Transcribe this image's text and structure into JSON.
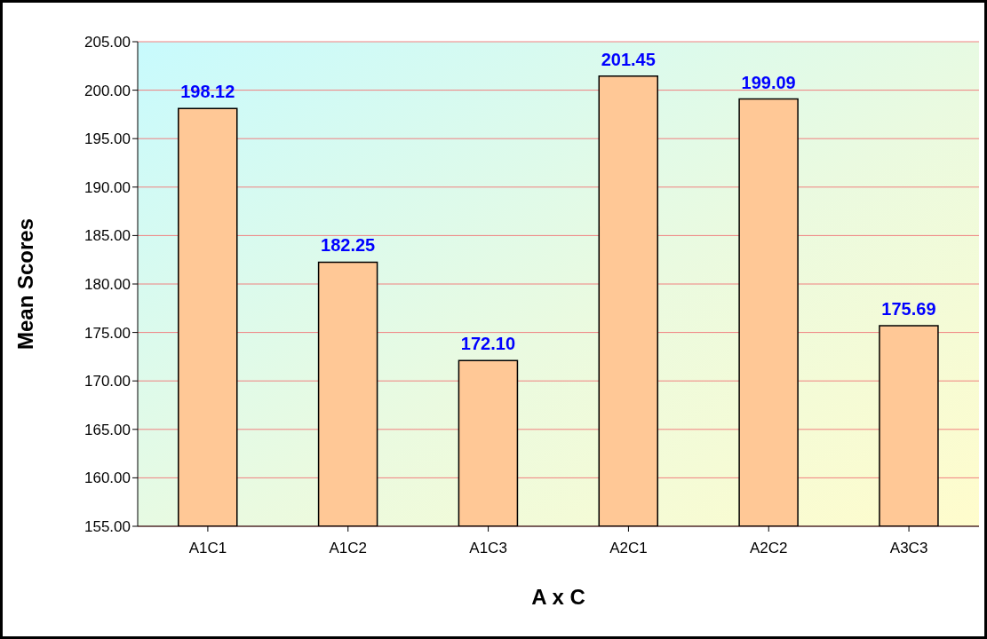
{
  "chart_data": {
    "type": "bar",
    "xlabel": "A x C",
    "ylabel": "Mean Scores",
    "categories": [
      "A1C1",
      "A1C2",
      "A1C3",
      "A2C1",
      "A2C2",
      "A3C3"
    ],
    "values": [
      198.12,
      182.25,
      172.1,
      201.45,
      199.09,
      175.69
    ],
    "value_labels": [
      "198.12",
      "182.25",
      "172.10",
      "201.45",
      "199.09",
      "175.69"
    ],
    "color": "#ffc896",
    "ylim": [
      155,
      205
    ],
    "yticks": [
      {
        "value": 155,
        "label": "155.00"
      },
      {
        "value": 160,
        "label": "160.00"
      },
      {
        "value": 165,
        "label": "165.00"
      },
      {
        "value": 170,
        "label": "170.00"
      },
      {
        "value": 175,
        "label": "175.00"
      },
      {
        "value": 180,
        "label": "180.00"
      },
      {
        "value": 185,
        "label": "185.00"
      },
      {
        "value": 190,
        "label": "190.00"
      },
      {
        "value": 195,
        "label": "195.00"
      },
      {
        "value": 200,
        "label": "200.00"
      },
      {
        "value": 205,
        "label": "205.00"
      }
    ],
    "grid": "y"
  }
}
